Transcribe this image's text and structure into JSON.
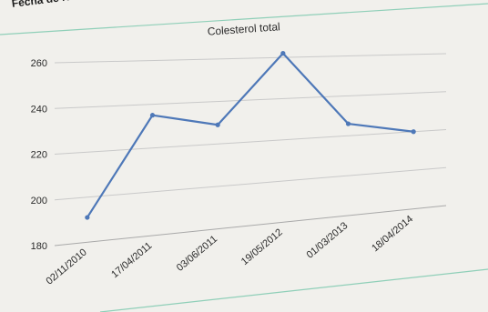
{
  "page_header": "Fecha de Nacimient",
  "colors": {
    "paper": "#f1f0ec",
    "line": "#4e78b8",
    "grid": "#c9c9c9",
    "frame": "#8fcfb8"
  },
  "chart_data": {
    "type": "line",
    "title": "Colesterol total",
    "xlabel": "",
    "ylabel": "",
    "categories": [
      "02/11/2010",
      "17/04/2011",
      "03/06/2011",
      "19/05/2012",
      "01/03/2013",
      "18/04/2014"
    ],
    "series": [
      {
        "values": [
          191,
          235,
          229,
          262,
          226,
          220
        ]
      }
    ],
    "ylim": [
      180,
      260
    ],
    "yticks": [
      180,
      200,
      220,
      240,
      260
    ],
    "grid": true,
    "legend": "none"
  }
}
